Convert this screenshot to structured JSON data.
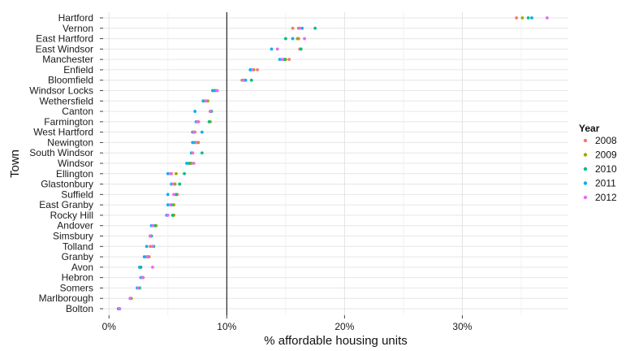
{
  "chart_data": {
    "type": "scatter",
    "xlabel": "% affordable housing units",
    "ylabel": "Town",
    "xlim": [
      -0.5,
      39
    ],
    "x_ticks": [
      0,
      10,
      20,
      30
    ],
    "x_tick_labels": [
      "0%",
      "10%",
      "20%",
      "30%"
    ],
    "reference_line_x": 10,
    "grid": true,
    "legend": {
      "title": "Year",
      "position": "right"
    },
    "towns": [
      "Hartford",
      "Vernon",
      "East Hartford",
      "East Windsor",
      "Manchester",
      "Enfield",
      "Bloomfield",
      "Windsor Locks",
      "Wethersfield",
      "Canton",
      "Farmington",
      "West Hartford",
      "Newington",
      "South Windsor",
      "Windsor",
      "Ellington",
      "Glastonbury",
      "Suffield",
      "East Granby",
      "Rocky Hill",
      "Andover",
      "Simsbury",
      "Tolland",
      "Granby",
      "Avon",
      "Hebron",
      "Somers",
      "Marlborough",
      "Bolton"
    ],
    "series": [
      {
        "name": "2008",
        "color": "#F8766D",
        "values": [
          34.6,
          15.6,
          16.1,
          16.2,
          15.3,
          12.6,
          11.5,
          9.1,
          8.3,
          8.6,
          7.6,
          7.3,
          7.6,
          7.1,
          6.9,
          5.3,
          5.6,
          5.8,
          5.5,
          5.5,
          3.7,
          3.6,
          3.5,
          3.2,
          2.6,
          2.9,
          2.5,
          1.8,
          0.9
        ]
      },
      {
        "name": "2009",
        "color": "#A3A500",
        "values": [
          35.1,
          16.1,
          16.0,
          16.3,
          15.0,
          12.3,
          11.3,
          9.0,
          8.4,
          8.6,
          8.6,
          7.2,
          7.5,
          7.0,
          7.0,
          5.7,
          5.6,
          5.7,
          5.5,
          5.5,
          4.0,
          3.5,
          3.7,
          3.4,
          2.7,
          2.8,
          2.6,
          1.9,
          0.8
        ]
      },
      {
        "name": "2010",
        "color": "#00BF7D",
        "values": [
          35.6,
          17.5,
          15.0,
          16.3,
          14.9,
          12.0,
          12.1,
          8.8,
          8.0,
          8.7,
          8.5,
          7.1,
          7.3,
          7.9,
          6.8,
          6.4,
          6.0,
          5.7,
          5.3,
          5.4,
          3.9,
          3.6,
          3.8,
          3.3,
          2.7,
          2.8,
          2.6,
          1.8,
          0.9
        ]
      },
      {
        "name": "2011",
        "color": "#00B0F6",
        "values": [
          35.9,
          16.4,
          15.6,
          13.8,
          14.5,
          12.0,
          11.6,
          8.9,
          8.1,
          7.3,
          7.4,
          7.9,
          7.1,
          7.0,
          6.6,
          5.0,
          5.3,
          5.0,
          5.0,
          4.9,
          3.6,
          3.5,
          3.2,
          3.0,
          2.6,
          2.7,
          2.4,
          1.8,
          0.8
        ]
      },
      {
        "name": "2012",
        "color": "#E76BF3",
        "values": [
          37.2,
          16.2,
          16.6,
          14.3,
          14.7,
          12.2,
          11.4,
          9.2,
          8.2,
          8.6,
          7.5,
          7.2,
          7.4,
          7.1,
          7.2,
          5.2,
          5.4,
          5.5,
          5.2,
          5.0,
          3.7,
          3.5,
          3.7,
          3.3,
          3.7,
          2.8,
          2.5,
          1.8,
          0.9
        ]
      }
    ]
  }
}
